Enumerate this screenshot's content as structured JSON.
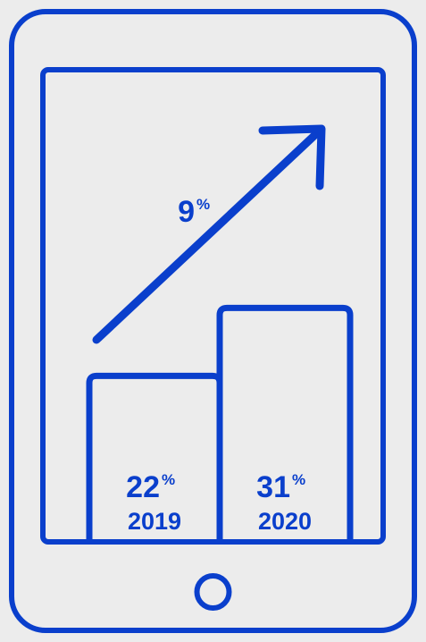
{
  "colors": {
    "accent": "#0a3fcc",
    "background": "#ececec"
  },
  "icons": {
    "device": "tablet-outline-icon",
    "home_button": "home-button-icon",
    "trend": "up-arrow-icon"
  },
  "growth": {
    "value": "9",
    "unit": "%"
  },
  "chart_data": {
    "type": "bar",
    "categories": [
      "2019",
      "2020"
    ],
    "values": [
      22,
      31
    ],
    "value_unit": "%",
    "growth_label": "9%",
    "title": "",
    "xlabel": "",
    "ylabel": "",
    "grid": false,
    "legend": "none"
  }
}
